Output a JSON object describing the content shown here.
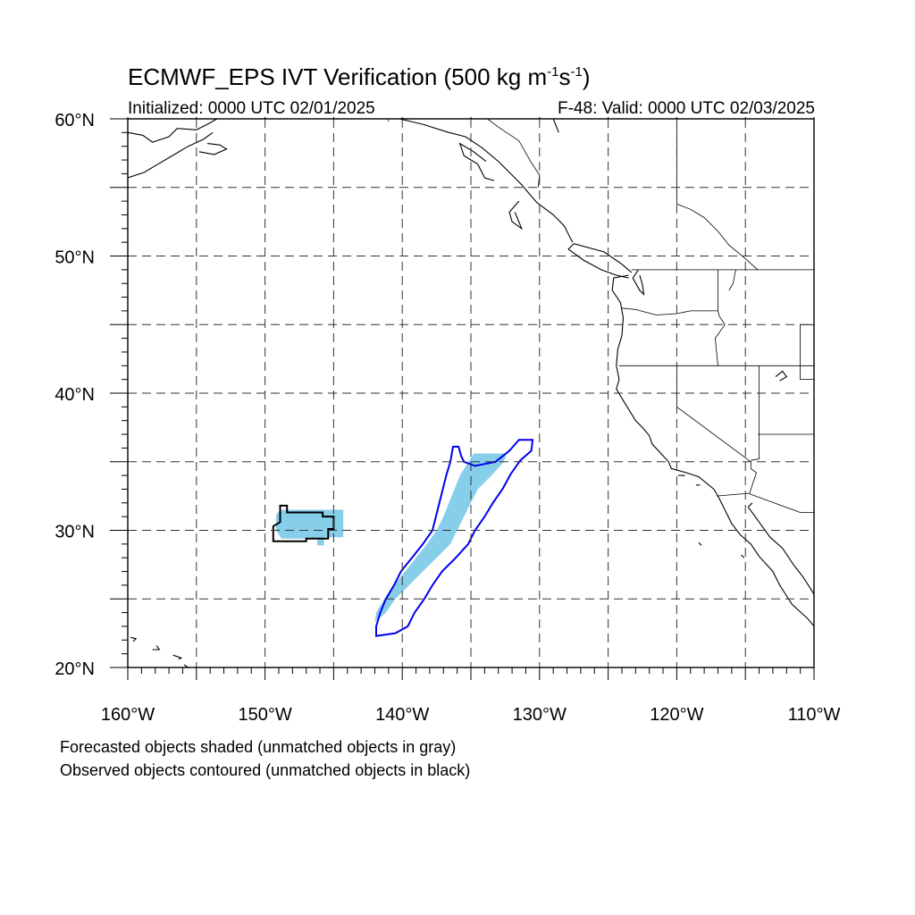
{
  "title": {
    "main": "ECMWF_EPS IVT Verification (500 kg m",
    "sup1": "-1",
    "mid": "s",
    "sup2": "-1",
    "end": ")"
  },
  "subtitle": {
    "initialized": "Initialized: 0000 UTC 02/01/2025",
    "valid": "F-48: Valid: 0000 UTC 02/03/2025"
  },
  "legend": {
    "forecast_note": "Forecasted objects shaded (unmatched objects in gray)",
    "observed_note": "Observed objects contoured (unmatched objects in black)"
  },
  "map": {
    "lon_range": [
      -160,
      -110
    ],
    "lat_range": [
      20,
      60
    ],
    "lat_labels": [
      {
        "value": 20,
        "text": "20°N"
      },
      {
        "value": 30,
        "text": "30°N"
      },
      {
        "value": 40,
        "text": "40°N"
      },
      {
        "value": 50,
        "text": "50°N"
      },
      {
        "value": 60,
        "text": "60°N"
      }
    ],
    "lon_labels": [
      {
        "value": -160,
        "text": "160°W"
      },
      {
        "value": -150,
        "text": "150°W"
      },
      {
        "value": -140,
        "text": "140°W"
      },
      {
        "value": -130,
        "text": "130°W"
      },
      {
        "value": -120,
        "text": "120°W"
      },
      {
        "value": -110,
        "text": "110°W"
      }
    ],
    "gridline_style": "dashed",
    "colors": {
      "forecast_fill": "#87ceeb",
      "matched_observed": "#0000ee",
      "unmatched_observed": "#000000",
      "coastline": "#000000"
    },
    "objects": [
      {
        "id": "forecast-object-west",
        "kind": "forecast",
        "matched": true,
        "polygon": [
          [
            -148.9,
            31.5
          ],
          [
            -144.3,
            31.5
          ],
          [
            -144.3,
            29.5
          ],
          [
            -145.7,
            29.5
          ],
          [
            -145.7,
            28.9
          ],
          [
            -146.2,
            28.9
          ],
          [
            -146.2,
            29.4
          ],
          [
            -148.8,
            29.4
          ],
          [
            -149.2,
            30.0
          ],
          [
            -149.2,
            31.1
          ]
        ]
      },
      {
        "id": "forecast-object-east",
        "kind": "forecast",
        "matched": true,
        "polygon": [
          [
            -142,
            23.3
          ],
          [
            -141.2,
            24.0
          ],
          [
            -140.5,
            25.0
          ],
          [
            -139.5,
            26.0
          ],
          [
            -138.5,
            27.0
          ],
          [
            -137.5,
            28.0
          ],
          [
            -136.5,
            29.0
          ],
          [
            -136,
            30.0
          ],
          [
            -135.5,
            31.0
          ],
          [
            -135,
            32.0
          ],
          [
            -134.5,
            33.0
          ],
          [
            -133.5,
            34.0
          ],
          [
            -132.6,
            35.0
          ],
          [
            -132.4,
            35.6
          ],
          [
            -134.8,
            35.6
          ],
          [
            -135.3,
            34.8
          ],
          [
            -135.8,
            34.0
          ],
          [
            -136.2,
            33.0
          ],
          [
            -136.6,
            32.0
          ],
          [
            -137.0,
            31.0
          ],
          [
            -137.5,
            30.0
          ],
          [
            -138.2,
            29.0
          ],
          [
            -139.0,
            28.0
          ],
          [
            -139.8,
            27.0
          ],
          [
            -140.6,
            26.0
          ],
          [
            -141.3,
            25.0
          ],
          [
            -141.9,
            24.0
          ]
        ]
      },
      {
        "id": "observed-contour-west",
        "kind": "observed",
        "matched": false,
        "polygon": [
          [
            -148.9,
            31.8
          ],
          [
            -148.4,
            31.8
          ],
          [
            -148.4,
            31.3
          ],
          [
            -145.8,
            31.3
          ],
          [
            -145.8,
            31.0
          ],
          [
            -145.0,
            31.0
          ],
          [
            -145.0,
            30.1
          ],
          [
            -145.4,
            30.1
          ],
          [
            -145.4,
            29.4
          ],
          [
            -147.0,
            29.4
          ],
          [
            -147.0,
            29.2
          ],
          [
            -149.4,
            29.2
          ],
          [
            -149.4,
            30.3
          ],
          [
            -148.9,
            30.6
          ]
        ]
      },
      {
        "id": "observed-contour-east",
        "kind": "observed",
        "matched": true,
        "polygon": [
          [
            -141.9,
            22.3
          ],
          [
            -140.5,
            22.5
          ],
          [
            -139.6,
            23.0
          ],
          [
            -139.1,
            24.0
          ],
          [
            -138.4,
            25.0
          ],
          [
            -137.8,
            26.0
          ],
          [
            -137.1,
            27.0
          ],
          [
            -136.1,
            28.0
          ],
          [
            -135.2,
            29.0
          ],
          [
            -134.7,
            30.0
          ],
          [
            -134.0,
            31.0
          ],
          [
            -133.4,
            32.0
          ],
          [
            -132.7,
            33.0
          ],
          [
            -132.1,
            34.1
          ],
          [
            -131.4,
            35.1
          ],
          [
            -130.6,
            35.8
          ],
          [
            -130.5,
            36.6
          ],
          [
            -131.5,
            36.6
          ],
          [
            -132.2,
            35.8
          ],
          [
            -133.2,
            35.0
          ],
          [
            -134.7,
            34.7
          ],
          [
            -135.5,
            35.0
          ],
          [
            -135.7,
            35.4
          ],
          [
            -135.9,
            36.1
          ],
          [
            -136.3,
            36.1
          ],
          [
            -136.5,
            35.0
          ],
          [
            -136.8,
            34.0
          ],
          [
            -137.3,
            32.0
          ],
          [
            -137.8,
            30.0
          ],
          [
            -138.5,
            29.0
          ],
          [
            -139.3,
            28.0
          ],
          [
            -140.1,
            27.0
          ],
          [
            -140.6,
            26.0
          ],
          [
            -141.2,
            25.0
          ],
          [
            -141.6,
            24.0
          ],
          [
            -141.9,
            23.0
          ]
        ]
      }
    ],
    "coastlines": [
      [
        [
          -123.5,
          48.6
        ],
        [
          -124.6,
          48.4
        ],
        [
          -124.7,
          47.5
        ],
        [
          -124.1,
          46.6
        ],
        [
          -123.9,
          45.5
        ],
        [
          -124.0,
          44.2
        ],
        [
          -124.3,
          43.2
        ],
        [
          -124.4,
          42.0
        ],
        [
          -124.2,
          41.0
        ],
        [
          -124.4,
          40.3
        ],
        [
          -123.8,
          39.3
        ],
        [
          -123.0,
          38.0
        ],
        [
          -122.5,
          37.5
        ],
        [
          -122.0,
          36.9
        ],
        [
          -121.8,
          36.3
        ],
        [
          -120.6,
          35.0
        ],
        [
          -120.4,
          34.5
        ],
        [
          -119.3,
          34.2
        ],
        [
          -118.4,
          33.9
        ],
        [
          -117.3,
          33.0
        ],
        [
          -117.0,
          32.5
        ],
        [
          -116.5,
          31.5
        ],
        [
          -116.0,
          30.5
        ],
        [
          -115.4,
          29.7
        ],
        [
          -114.6,
          29.0
        ],
        [
          -114.0,
          28.1
        ],
        [
          -113.0,
          27.0
        ],
        [
          -112.5,
          26.0
        ],
        [
          -111.6,
          24.6
        ],
        [
          -110.5,
          23.6
        ],
        [
          -109.9,
          22.9
        ]
      ],
      [
        [
          -122.8,
          49.0
        ],
        [
          -123.2,
          48.4
        ],
        [
          -122.7,
          47.5
        ],
        [
          -122.4,
          47.2
        ],
        [
          -122.5,
          47.9
        ],
        [
          -122.7,
          48.6
        ]
      ],
      [
        [
          -123.5,
          48.4
        ],
        [
          -124.4,
          48.6
        ],
        [
          -125.5,
          49.0
        ],
        [
          -126.8,
          49.7
        ],
        [
          -127.9,
          50.5
        ],
        [
          -127.5,
          50.9
        ],
        [
          -125.3,
          50.3
        ],
        [
          -124.0,
          49.4
        ],
        [
          -123.3,
          48.8
        ]
      ],
      [
        [
          -127.6,
          51.0
        ],
        [
          -128.2,
          52.2
        ],
        [
          -129.0,
          53.0
        ],
        [
          -130.2,
          53.9
        ],
        [
          -130.8,
          54.6
        ],
        [
          -131.3,
          55.2
        ],
        [
          -132.1,
          56.0
        ],
        [
          -133.0,
          56.9
        ],
        [
          -134.2,
          57.9
        ],
        [
          -135.4,
          58.7
        ],
        [
          -136.6,
          59.0
        ],
        [
          -138.5,
          59.6
        ],
        [
          -140.2,
          60.0
        ]
      ],
      [
        [
          -131.5,
          54.0
        ],
        [
          -132.2,
          53.2
        ],
        [
          -132.0,
          52.5
        ],
        [
          -131.3,
          52.0
        ],
        [
          -131.8,
          53.2
        ]
      ],
      [
        [
          -133.3,
          55.5
        ],
        [
          -134.0,
          55.7
        ],
        [
          -134.5,
          56.7
        ],
        [
          -135.5,
          57.3
        ],
        [
          -135.8,
          58.2
        ],
        [
          -134.8,
          57.6
        ],
        [
          -133.9,
          56.9
        ]
      ],
      [
        [
          -129.0,
          60.0
        ],
        [
          -128.6,
          59.0
        ]
      ],
      [
        [
          -160.0,
          59.0
        ],
        [
          -158.9,
          58.8
        ],
        [
          -158.2,
          58.3
        ],
        [
          -157.0,
          58.7
        ],
        [
          -156.4,
          59.3
        ],
        [
          -155.0,
          59.2
        ],
        [
          -154.2,
          59.6
        ],
        [
          -153.5,
          60.0
        ]
      ],
      [
        [
          -160.0,
          55.7
        ],
        [
          -158.8,
          56.1
        ],
        [
          -157.8,
          56.7
        ],
        [
          -156.6,
          57.4
        ],
        [
          -155.6,
          58.0
        ],
        [
          -154.5,
          58.5
        ],
        [
          -153.8,
          59.0
        ]
      ],
      [
        [
          -154.8,
          57.6
        ],
        [
          -153.7,
          57.4
        ],
        [
          -152.8,
          57.8
        ],
        [
          -153.3,
          58.1
        ],
        [
          -154.2,
          58.2
        ]
      ],
      [
        [
          -114.8,
          31.7
        ],
        [
          -114.0,
          30.6
        ],
        [
          -113.2,
          29.5
        ],
        [
          -112.3,
          28.7
        ],
        [
          -111.5,
          27.5
        ],
        [
          -110.8,
          26.6
        ],
        [
          -110.1,
          25.5
        ],
        [
          -109.5,
          24.5
        ]
      ],
      [
        [
          -114.8,
          31.7
        ],
        [
          -114.5,
          32.0
        ]
      ],
      [
        [
          -155.9,
          20.2
        ],
        [
          -155.0,
          19.6
        ],
        [
          -155.3,
          19.3
        ],
        [
          -155.9,
          19.7
        ]
      ],
      [
        [
          -156.7,
          20.9
        ],
        [
          -156.1,
          20.7
        ],
        [
          -156.3,
          20.6
        ]
      ],
      [
        [
          -157.9,
          21.6
        ],
        [
          -157.7,
          21.3
        ],
        [
          -158.2,
          21.3
        ]
      ],
      [
        [
          -159.8,
          22.2
        ],
        [
          -159.4,
          22.1
        ],
        [
          -159.6,
          21.9
        ]
      ],
      [
        [
          -118.6,
          33.3
        ],
        [
          -118.3,
          33.3
        ]
      ],
      [
        [
          -119.9,
          34.0
        ],
        [
          -119.4,
          34.0
        ]
      ],
      [
        [
          -118.4,
          29.1
        ],
        [
          -118.2,
          28.9
        ]
      ],
      [
        [
          -115.3,
          28.2
        ],
        [
          -115.1,
          28.0
        ]
      ],
      [
        [
          -112.8,
          41.2
        ],
        [
          -112.3,
          41.6
        ],
        [
          -112.0,
          41.2
        ],
        [
          -112.5,
          40.9
        ]
      ]
    ],
    "political_borders": [
      [
        [
          -123.3,
          49.0
        ],
        [
          -110.0,
          49.0
        ]
      ],
      [
        [
          -117.0,
          49.0
        ],
        [
          -117.0,
          46.0
        ],
        [
          -116.9,
          45.6
        ],
        [
          -116.5,
          45.0
        ],
        [
          -117.2,
          44.0
        ],
        [
          -117.0,
          42.0
        ]
      ],
      [
        [
          -124.0,
          46.2
        ],
        [
          -123.0,
          46.1
        ],
        [
          -121.5,
          45.7
        ],
        [
          -120.0,
          45.8
        ],
        [
          -119.0,
          46.0
        ],
        [
          -117.0,
          46.0
        ]
      ],
      [
        [
          -124.2,
          42.0
        ],
        [
          -110.0,
          42.0
        ]
      ],
      [
        [
          -120.0,
          42.0
        ],
        [
          -120.0,
          39.0
        ],
        [
          -114.6,
          35.0
        ],
        [
          -114.6,
          34.5
        ],
        [
          -114.2,
          34.2
        ],
        [
          -114.7,
          32.7
        ]
      ],
      [
        [
          -114.0,
          42.0
        ],
        [
          -114.0,
          35.2
        ],
        [
          -114.6,
          35.1
        ]
      ],
      [
        [
          -117.1,
          32.5
        ],
        [
          -114.8,
          32.7
        ],
        [
          -111.0,
          31.3
        ],
        [
          -110.0,
          31.3
        ]
      ],
      [
        [
          -115.7,
          49.0
        ],
        [
          -115.9,
          48.0
        ],
        [
          -116.2,
          47.5
        ]
      ],
      [
        [
          -110.0,
          45.0
        ],
        [
          -111.0,
          45.0
        ],
        [
          -111.0,
          44.5
        ],
        [
          -111.0,
          41.0
        ],
        [
          -110.0,
          41.0
        ]
      ],
      [
        [
          -114.1,
          37.0
        ],
        [
          -110.0,
          37.0
        ]
      ],
      [
        [
          -120.0,
          60.0
        ],
        [
          -120.0,
          53.8
        ],
        [
          -119.0,
          53.4
        ],
        [
          -118.0,
          52.8
        ],
        [
          -117.0,
          51.8
        ],
        [
          -116.2,
          50.8
        ],
        [
          -115.0,
          49.8
        ],
        [
          -114.1,
          49.0
        ]
      ],
      [
        [
          -133.8,
          60.0
        ],
        [
          -133.0,
          59.4
        ],
        [
          -131.5,
          58.4
        ],
        [
          -130.6,
          56.8
        ],
        [
          -130.0,
          55.9
        ],
        [
          -130.1,
          55.0
        ]
      ],
      [
        [
          -141.0,
          60.0
        ],
        [
          -141.0,
          59.8
        ]
      ]
    ]
  }
}
